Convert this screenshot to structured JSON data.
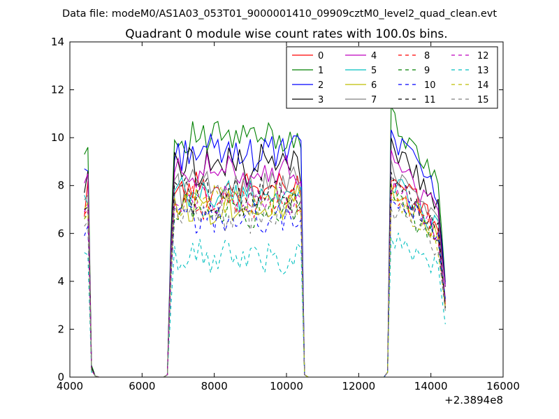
{
  "chart_data": {
    "type": "line",
    "suptitle": "Data file: modeM0/AS1A03_053T01_9000001410_09909cztM0_level2_quad_clean.evt",
    "title": "Quadrant 0 module wise count rates with 100.0s bins.",
    "xlabel": "",
    "ylabel": "",
    "xlim": [
      4000,
      16000
    ],
    "ylim": [
      0,
      14
    ],
    "x_ticks": [
      "4000",
      "6000",
      "8000",
      "10000",
      "12000",
      "14000",
      "16000"
    ],
    "y_ticks": [
      "0",
      "2",
      "4",
      "6",
      "8",
      "10",
      "12",
      "14"
    ],
    "x_offset_label": "+2.3894e8",
    "grid": false,
    "legend": {
      "placement": "top-right",
      "columns": 4
    },
    "segments": [
      {
        "start": 4400,
        "bins": 5,
        "drop": [
          0,
          0,
          0,
          0.05,
          0.0
        ]
      },
      {
        "start": 6700,
        "bins": 38
      },
      {
        "start": 12800,
        "bins": 17
      }
    ],
    "series": [
      {
        "name": "0",
        "color": "#ff0000",
        "dash": "solid",
        "seg1": [
          6.7,
          8.2,
          0.3
        ],
        "level2": 7.9,
        "level3": 8.6
      },
      {
        "name": "1",
        "color": "#008000",
        "dash": "solid",
        "seg1": [
          9.3,
          9.6,
          0.5
        ],
        "level2": 10.0,
        "level3": 11.0
      },
      {
        "name": "2",
        "color": "#0000ff",
        "dash": "solid",
        "seg1": [
          8.7,
          8.6,
          0.4
        ],
        "level2": 9.4,
        "level3": 10.3
      },
      {
        "name": "3",
        "color": "#000000",
        "dash": "solid",
        "seg1": [
          7.7,
          8.6,
          0.4
        ],
        "level2": 8.9,
        "level3": 9.8
      },
      {
        "name": "4",
        "color": "#bf00bf",
        "dash": "solid",
        "seg1": [
          8.1,
          8.5,
          0.3
        ],
        "level2": 8.6,
        "level3": 9.3
      },
      {
        "name": "5",
        "color": "#00bfbf",
        "dash": "solid",
        "seg1": [
          7.6,
          7.2,
          0.3
        ],
        "level2": 7.6,
        "level3": 8.4
      },
      {
        "name": "6",
        "color": "#bfbf00",
        "dash": "solid",
        "seg1": [
          7.0,
          7.3,
          0.3
        ],
        "level2": 7.2,
        "level3": 8.1
      },
      {
        "name": "7",
        "color": "#808080",
        "dash": "solid",
        "seg1": [
          7.4,
          7.6,
          0.3
        ],
        "level2": 8.0,
        "level3": 8.8
      },
      {
        "name": "8",
        "color": "#ff0000",
        "dash": "dashed",
        "seg1": [
          6.8,
          7.0,
          0.3
        ],
        "level2": 7.3,
        "level3": 8.0
      },
      {
        "name": "9",
        "color": "#008000",
        "dash": "dashed",
        "seg1": [
          6.6,
          6.9,
          0.3
        ],
        "level2": 7.0,
        "level3": 7.6
      },
      {
        "name": "10",
        "color": "#0000ff",
        "dash": "dashed",
        "seg1": [
          5.9,
          6.3,
          0.3
        ],
        "level2": 6.6,
        "level3": 7.9
      },
      {
        "name": "11",
        "color": "#000000",
        "dash": "dashed",
        "seg1": [
          7.0,
          7.1,
          0.3
        ],
        "level2": 7.6,
        "level3": 8.3
      },
      {
        "name": "12",
        "color": "#bf00bf",
        "dash": "dashed",
        "seg1": [
          6.9,
          7.2,
          0.3
        ],
        "level2": 7.4,
        "level3": 8.2
      },
      {
        "name": "13",
        "color": "#00bfbf",
        "dash": "dashed",
        "seg1": [
          5.2,
          5.1,
          0.2
        ],
        "level2": 5.0,
        "level3": 6.1
      },
      {
        "name": "14",
        "color": "#bfbf00",
        "dash": "dashed",
        "seg1": [
          6.6,
          6.8,
          0.3
        ],
        "level2": 7.2,
        "level3": 7.5
      },
      {
        "name": "15",
        "color": "#808080",
        "dash": "dashed",
        "seg1": [
          6.3,
          6.5,
          0.3
        ],
        "level2": 6.9,
        "level3": 7.3
      }
    ]
  }
}
